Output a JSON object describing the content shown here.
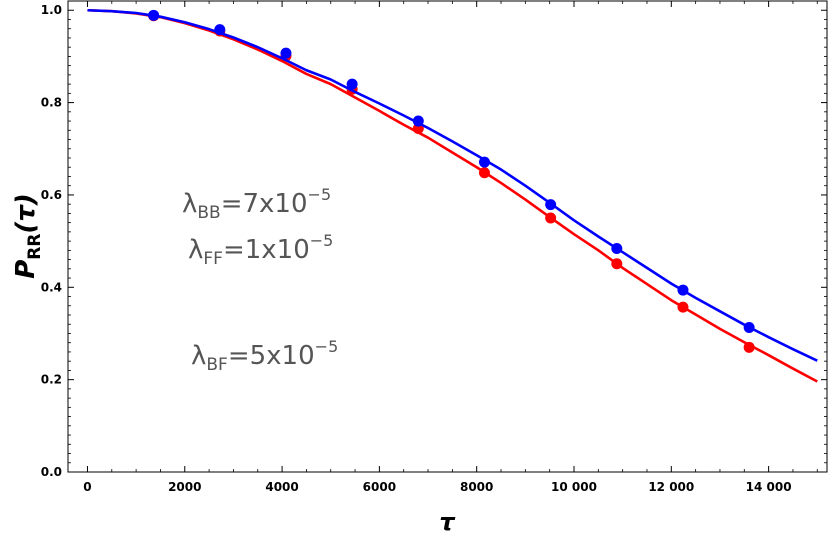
{
  "chart_data": {
    "type": "line",
    "xlabel": "τ",
    "ylabel_main": "P",
    "ylabel_sub": "RR",
    "ylabel_arg": "(τ)",
    "xlim": [
      -400,
      15200
    ],
    "ylim": [
      0.0,
      1.02
    ],
    "x_ticks": [
      0,
      2000,
      4000,
      6000,
      8000,
      10000,
      12000,
      14000
    ],
    "x_tick_labels": [
      "0",
      "2000",
      "4000",
      "6000",
      "8000",
      "10 000",
      "12 000",
      "14 000"
    ],
    "y_ticks": [
      0.0,
      0.2,
      0.4,
      0.6,
      0.8,
      1.0
    ],
    "y_tick_labels": [
      "0.0",
      "0.2",
      "0.4",
      "0.6",
      "0.8",
      "1.0"
    ],
    "grid": false,
    "series": [
      {
        "color": "#0000ff",
        "curve_x": [
          0,
          500,
          1000,
          1500,
          2000,
          2500,
          3000,
          3500,
          4000,
          4500,
          5000,
          5500,
          6000,
          6500,
          7000,
          7500,
          8000,
          8500,
          9000,
          9500,
          10000,
          10500,
          11000,
          11500,
          12000,
          12500,
          13000,
          13500,
          14000,
          14500,
          15000
        ],
        "curve_y": [
          1.0,
          0.998,
          0.994,
          0.986,
          0.974,
          0.959,
          0.941,
          0.92,
          0.896,
          0.87,
          0.85,
          0.823,
          0.798,
          0.772,
          0.745,
          0.716,
          0.686,
          0.655,
          0.62,
          0.583,
          0.545,
          0.51,
          0.476,
          0.442,
          0.408,
          0.377,
          0.348,
          0.319,
          0.292,
          0.266,
          0.241
        ],
        "points_x": [
          1360,
          2720,
          4080,
          5440,
          6800,
          8160,
          9520,
          10880,
          12240,
          13600
        ],
        "points_y": [
          0.989,
          0.958,
          0.907,
          0.84,
          0.76,
          0.671,
          0.579,
          0.484,
          0.394,
          0.313
        ]
      },
      {
        "color": "#ff0000",
        "curve_x": [
          0,
          500,
          1000,
          1500,
          2000,
          2500,
          3000,
          3500,
          4000,
          4500,
          5000,
          5500,
          6000,
          6500,
          7000,
          7500,
          8000,
          8500,
          9000,
          9500,
          10000,
          10500,
          11000,
          11500,
          12000,
          12500,
          13000,
          13500,
          14000,
          14500,
          15000
        ],
        "curve_y": [
          1.0,
          0.998,
          0.993,
          0.985,
          0.972,
          0.956,
          0.937,
          0.915,
          0.89,
          0.862,
          0.84,
          0.811,
          0.782,
          0.752,
          0.724,
          0.692,
          0.66,
          0.626,
          0.59,
          0.552,
          0.515,
          0.48,
          0.442,
          0.407,
          0.372,
          0.341,
          0.31,
          0.281,
          0.253,
          0.224,
          0.196
        ],
        "points_x": [
          1360,
          2720,
          4080,
          5440,
          6800,
          8160,
          9520,
          10880,
          12240,
          13600
        ],
        "points_y": [
          0.988,
          0.955,
          0.901,
          0.829,
          0.744,
          0.648,
          0.55,
          0.451,
          0.357,
          0.27
        ]
      }
    ],
    "annotations": [
      {
        "symbol": "λ",
        "sub": "BB",
        "text": "=7x10",
        "sup": "−5"
      },
      {
        "symbol": "λ",
        "sub": "FF",
        "text": "=1x10",
        "sup": "−5"
      },
      {
        "symbol": "λ",
        "sub": "BF",
        "text": "=5x10",
        "sup": "−5"
      }
    ]
  }
}
